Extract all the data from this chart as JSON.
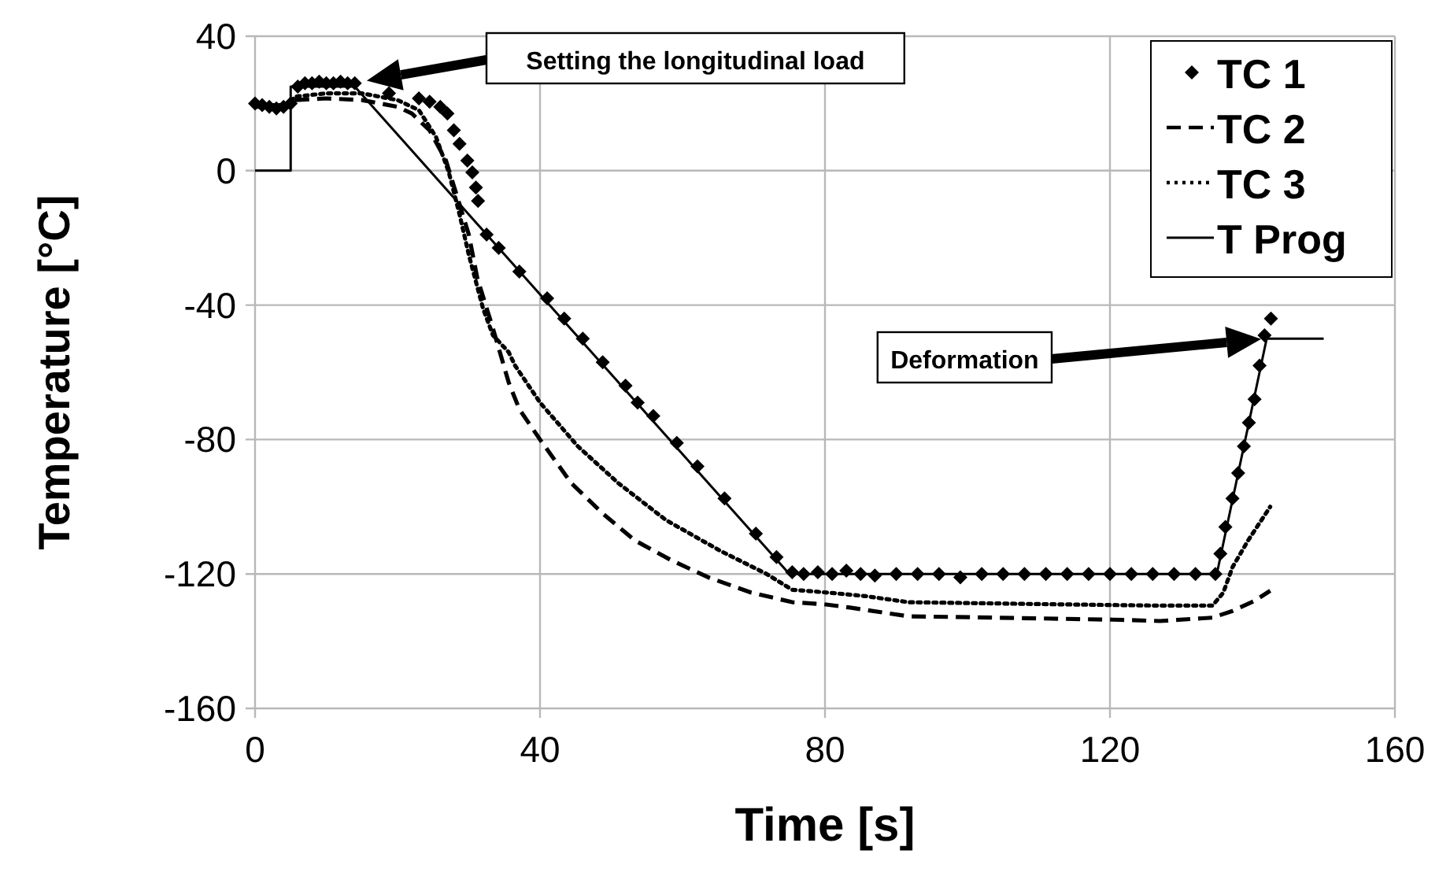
{
  "chart_data": {
    "type": "line",
    "xlabel": "Time [s]",
    "ylabel": "Temperature [°C]",
    "xlim": [
      0,
      160
    ],
    "xticks": [
      0,
      40,
      80,
      120,
      160
    ],
    "ylim": [
      -160,
      40
    ],
    "yticks": [
      -160,
      -120,
      -80,
      -40,
      0,
      40
    ],
    "grid": true,
    "legend": "top right",
    "annotations": [
      "Setting the longitudinal load",
      "Deformation"
    ],
    "series": [
      {
        "name": "TC 1",
        "type": "scatter",
        "marker": "diamond",
        "color": "#000000",
        "x": [
          0,
          1,
          2,
          3,
          4,
          5,
          6,
          7,
          8,
          9,
          10,
          11,
          12,
          13,
          14,
          18.8,
          23,
          24.5,
          26,
          27,
          27.9,
          28.7,
          29.8,
          30.5,
          31,
          31.3,
          32.5,
          34.2,
          37.1,
          41,
          43.4,
          46,
          48.8,
          52,
          53.7,
          55.9,
          59.2,
          62.1,
          65.9,
          70.3,
          73.2,
          75.4,
          77,
          79,
          81,
          83,
          85,
          87,
          90,
          93,
          96,
          99,
          102,
          105,
          108,
          111,
          114,
          117,
          120,
          123,
          126,
          129,
          132,
          134.8,
          135.5,
          136.2,
          137.2,
          138,
          138.8,
          139.5,
          140.3,
          141,
          141.7,
          142.6
        ],
        "values": [
          20,
          19.5,
          19,
          18.5,
          19,
          20,
          25,
          26,
          26,
          26.5,
          26,
          26,
          26.5,
          26,
          26,
          23,
          21.5,
          20.5,
          19,
          17,
          12,
          8,
          3,
          -0.5,
          -5,
          -9,
          -19,
          -23,
          -30,
          -38,
          -44,
          -50,
          -57,
          -64,
          -69,
          -73,
          -81,
          -88,
          -97.5,
          -108,
          -115,
          -119.5,
          -120,
          -119.5,
          -120,
          -119,
          -120,
          -120.5,
          -120,
          -120,
          -120,
          -121,
          -120,
          -120,
          -120,
          -120,
          -120,
          -120,
          -120,
          -120,
          -120,
          -120,
          -120,
          -120,
          -114,
          -106,
          -97.5,
          -90,
          -82,
          -75,
          -68,
          -58,
          -49,
          -44
        ]
      },
      {
        "name": "TC 2",
        "line_style": "dashed",
        "color": "#000000",
        "x": [
          0,
          5,
          5.5,
          10,
          15,
          20,
          22,
          24.5,
          26.8,
          28.7,
          30,
          31.2,
          33.4,
          35.6,
          37.1,
          40,
          44.4,
          48.8,
          53.3,
          58.5,
          63.6,
          69.6,
          75.4,
          79.8,
          83.5,
          91.7,
          104,
          120.4,
          127,
          134.4,
          137.2,
          140.3,
          142.5
        ],
        "values": [
          19,
          19,
          21,
          21.5,
          21,
          19,
          17,
          12,
          3,
          -10,
          -19,
          -32,
          -47,
          -63,
          -71,
          -80,
          -93,
          -102,
          -110,
          -116,
          -121,
          -125.5,
          -128.4,
          -129,
          -130,
          -132.6,
          -133,
          -133.6,
          -134,
          -133,
          -131,
          -128,
          -125
        ]
      },
      {
        "name": "TC 3",
        "line_style": "dotted",
        "color": "#000000",
        "x": [
          0,
          5,
          5.5,
          10,
          15,
          20,
          23,
          25.4,
          27.2,
          28.7,
          30,
          32,
          33.4,
          35.6,
          36.5,
          40,
          45.3,
          51,
          57.7,
          65.2,
          71.8,
          75.4,
          80.7,
          85.7,
          91.7,
          111.6,
          126.2,
          134.4,
          135.9,
          137.2,
          139.4,
          142.5
        ],
        "values": [
          19.5,
          19.5,
          22,
          23,
          23,
          21,
          18,
          10,
          -0.5,
          -13,
          -25,
          -41,
          -49,
          -54,
          -58,
          -69,
          -82,
          -93,
          -104,
          -113,
          -120,
          -124.7,
          -125.6,
          -126.6,
          -128.4,
          -129,
          -129.4,
          -129.4,
          -125.6,
          -118,
          -110,
          -100
        ]
      },
      {
        "name": "T Prog",
        "line_style": "solid",
        "color": "#000000",
        "x": [
          0,
          5,
          5,
          14,
          75,
          135,
          142,
          150
        ],
        "values": [
          0,
          0,
          25,
          25,
          -120,
          -120,
          -50,
          -50
        ]
      }
    ]
  }
}
